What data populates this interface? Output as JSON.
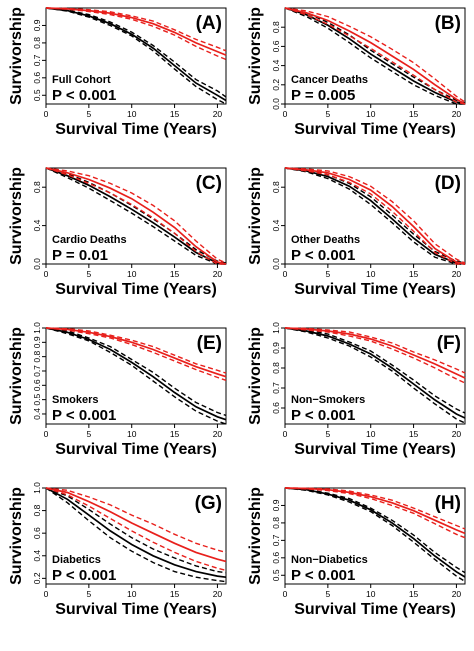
{
  "figure": {
    "y_axis_label": "Survivorship",
    "x_axis_label": "Survival Time (Years)"
  },
  "colors": {
    "group_a": "#000000",
    "group_b": "#e8201c"
  },
  "chart_data": [
    {
      "type": "line",
      "panel_label": "(A)",
      "subgroup": "Full Cohort",
      "p_value": "P < 0.001",
      "xlabel": "Survival Time (Years)",
      "ylabel": "Survivorship",
      "xlim": [
        0,
        21
      ],
      "ylim": [
        0.45,
        1.0
      ],
      "xticks": [
        "0",
        "5",
        "10",
        "15",
        "20"
      ],
      "yticks": [
        "0.5",
        "0.6",
        "0.7",
        "0.8",
        "0.9"
      ],
      "x": [
        0,
        2.5,
        5,
        7.5,
        10,
        12.5,
        15,
        17.5,
        20,
        21
      ],
      "series": [
        {
          "color": "black",
          "values": [
            1.0,
            0.985,
            0.955,
            0.91,
            0.85,
            0.77,
            0.67,
            0.57,
            0.5,
            0.47
          ],
          "lower": [
            1.0,
            0.982,
            0.948,
            0.9,
            0.84,
            0.755,
            0.65,
            0.55,
            0.475,
            0.45
          ],
          "upper": [
            1.0,
            0.988,
            0.962,
            0.92,
            0.862,
            0.785,
            0.69,
            0.59,
            0.525,
            0.49
          ]
        },
        {
          "color": "red",
          "values": [
            1.0,
            0.995,
            0.985,
            0.97,
            0.945,
            0.91,
            0.86,
            0.8,
            0.75,
            0.73
          ],
          "lower": [
            1.0,
            0.993,
            0.98,
            0.962,
            0.935,
            0.895,
            0.845,
            0.78,
            0.725,
            0.705
          ],
          "upper": [
            1.0,
            0.997,
            0.99,
            0.978,
            0.955,
            0.925,
            0.875,
            0.82,
            0.775,
            0.755
          ]
        }
      ]
    },
    {
      "type": "line",
      "panel_label": "(B)",
      "subgroup": "Cancer Deaths",
      "p_value": "P = 0.005",
      "xlabel": "Survival Time (Years)",
      "ylabel": "Survivorship",
      "xlim": [
        0,
        21
      ],
      "ylim": [
        0.0,
        1.0
      ],
      "xticks": [
        "0",
        "5",
        "10",
        "15",
        "20"
      ],
      "yticks": [
        "0.0",
        "0.2",
        "0.4",
        "0.6",
        "0.8"
      ],
      "x": [
        0,
        2.5,
        5,
        7.5,
        10,
        12.5,
        15,
        17.5,
        20,
        21
      ],
      "series": [
        {
          "color": "black",
          "values": [
            1.0,
            0.93,
            0.82,
            0.68,
            0.52,
            0.38,
            0.24,
            0.12,
            0.02,
            0.0
          ],
          "lower": [
            1.0,
            0.91,
            0.79,
            0.64,
            0.48,
            0.34,
            0.2,
            0.09,
            0.0,
            0.0
          ],
          "upper": [
            1.0,
            0.95,
            0.85,
            0.72,
            0.56,
            0.42,
            0.28,
            0.15,
            0.04,
            0.01
          ]
        },
        {
          "color": "red",
          "values": [
            1.0,
            0.95,
            0.87,
            0.76,
            0.64,
            0.5,
            0.36,
            0.2,
            0.05,
            0.0
          ],
          "lower": [
            1.0,
            0.93,
            0.83,
            0.71,
            0.58,
            0.44,
            0.3,
            0.15,
            0.02,
            0.0
          ],
          "upper": [
            1.0,
            0.97,
            0.91,
            0.81,
            0.7,
            0.57,
            0.43,
            0.26,
            0.08,
            0.02
          ]
        }
      ]
    },
    {
      "type": "line",
      "panel_label": "(C)",
      "subgroup": "Cardio Deaths",
      "p_value": "P = 0.01",
      "xlabel": "Survival Time (Years)",
      "ylabel": "Survivorship",
      "xlim": [
        0,
        21
      ],
      "ylim": [
        0.0,
        1.0
      ],
      "xticks": [
        "0",
        "5",
        "10",
        "15",
        "20"
      ],
      "yticks": [
        "0.0",
        "0.4",
        "0.8"
      ],
      "x": [
        0,
        2.5,
        5,
        7.5,
        10,
        12.5,
        15,
        17.5,
        20,
        21
      ],
      "series": [
        {
          "color": "black",
          "values": [
            1.0,
            0.92,
            0.82,
            0.7,
            0.57,
            0.43,
            0.28,
            0.12,
            0.01,
            0.0
          ],
          "lower": [
            1.0,
            0.9,
            0.79,
            0.66,
            0.53,
            0.39,
            0.24,
            0.09,
            0.0,
            0.0
          ],
          "upper": [
            1.0,
            0.94,
            0.85,
            0.74,
            0.61,
            0.47,
            0.32,
            0.15,
            0.03,
            0.01
          ]
        },
        {
          "color": "red",
          "values": [
            1.0,
            0.95,
            0.88,
            0.79,
            0.68,
            0.54,
            0.38,
            0.18,
            0.02,
            0.0
          ],
          "lower": [
            1.0,
            0.93,
            0.84,
            0.74,
            0.62,
            0.48,
            0.32,
            0.13,
            0.0,
            0.0
          ],
          "upper": [
            1.0,
            0.97,
            0.92,
            0.84,
            0.74,
            0.61,
            0.45,
            0.24,
            0.05,
            0.01
          ]
        }
      ]
    },
    {
      "type": "line",
      "panel_label": "(D)",
      "subgroup": "Other Deaths",
      "p_value": "P < 0.001",
      "xlabel": "Survival Time (Years)",
      "ylabel": "Survivorship",
      "xlim": [
        0,
        21
      ],
      "ylim": [
        0.0,
        1.0
      ],
      "xticks": [
        "0",
        "5",
        "10",
        "15",
        "20"
      ],
      "yticks": [
        "0.0",
        "0.4",
        "0.8"
      ],
      "x": [
        0,
        2.5,
        5,
        7.5,
        10,
        12.5,
        15,
        17.5,
        20,
        21
      ],
      "series": [
        {
          "color": "black",
          "values": [
            1.0,
            0.97,
            0.91,
            0.81,
            0.66,
            0.47,
            0.27,
            0.1,
            0.01,
            0.0
          ],
          "lower": [
            1.0,
            0.96,
            0.89,
            0.78,
            0.62,
            0.43,
            0.23,
            0.07,
            0.0,
            0.0
          ],
          "upper": [
            1.0,
            0.98,
            0.93,
            0.84,
            0.7,
            0.51,
            0.31,
            0.13,
            0.03,
            0.01
          ]
        },
        {
          "color": "red",
          "values": [
            1.0,
            0.98,
            0.95,
            0.88,
            0.77,
            0.6,
            0.39,
            0.16,
            0.02,
            0.0
          ],
          "lower": [
            1.0,
            0.97,
            0.93,
            0.85,
            0.73,
            0.55,
            0.34,
            0.12,
            0.0,
            0.0
          ],
          "upper": [
            1.0,
            0.99,
            0.97,
            0.91,
            0.81,
            0.65,
            0.45,
            0.21,
            0.05,
            0.01
          ]
        }
      ]
    },
    {
      "type": "line",
      "panel_label": "(E)",
      "subgroup": "Smokers",
      "p_value": "P < 0.001",
      "xlabel": "Survival Time (Years)",
      "ylabel": "Survivorship",
      "xlim": [
        0,
        21
      ],
      "ylim": [
        0.33,
        1.0
      ],
      "xticks": [
        "0",
        "5",
        "10",
        "15",
        "20"
      ],
      "yticks": [
        "0.4",
        "0.5",
        "0.6",
        "0.7",
        "0.8",
        "0.9",
        "1.0"
      ],
      "x": [
        0,
        2.5,
        5,
        7.5,
        10,
        12.5,
        15,
        17.5,
        20,
        21
      ],
      "series": [
        {
          "color": "black",
          "values": [
            1.0,
            0.97,
            0.92,
            0.85,
            0.76,
            0.66,
            0.55,
            0.45,
            0.38,
            0.36
          ],
          "lower": [
            1.0,
            0.96,
            0.91,
            0.83,
            0.74,
            0.63,
            0.52,
            0.42,
            0.35,
            0.33
          ],
          "upper": [
            1.0,
            0.98,
            0.93,
            0.87,
            0.78,
            0.69,
            0.58,
            0.48,
            0.41,
            0.39
          ]
        },
        {
          "color": "red",
          "values": [
            1.0,
            0.99,
            0.97,
            0.94,
            0.9,
            0.85,
            0.79,
            0.73,
            0.68,
            0.66
          ],
          "lower": [
            1.0,
            0.985,
            0.96,
            0.93,
            0.885,
            0.83,
            0.77,
            0.71,
            0.655,
            0.635
          ],
          "upper": [
            1.0,
            0.995,
            0.98,
            0.95,
            0.915,
            0.87,
            0.81,
            0.75,
            0.705,
            0.685
          ]
        }
      ]
    },
    {
      "type": "line",
      "panel_label": "(F)",
      "subgroup": "Non−Smokers",
      "p_value": "P < 0.001",
      "xlabel": "Survival Time (Years)",
      "ylabel": "Survivorship",
      "xlim": [
        0,
        21
      ],
      "ylim": [
        0.52,
        1.0
      ],
      "xticks": [
        "0",
        "5",
        "10",
        "15",
        "20"
      ],
      "yticks": [
        "0.6",
        "0.7",
        "0.8",
        "0.9",
        "1.0"
      ],
      "x": [
        0,
        2.5,
        5,
        7.5,
        10,
        12.5,
        15,
        17.5,
        20,
        21
      ],
      "series": [
        {
          "color": "black",
          "values": [
            1.0,
            0.985,
            0.96,
            0.92,
            0.87,
            0.8,
            0.72,
            0.64,
            0.57,
            0.55
          ],
          "lower": [
            1.0,
            0.98,
            0.95,
            0.91,
            0.855,
            0.785,
            0.7,
            0.62,
            0.545,
            0.525
          ],
          "upper": [
            1.0,
            0.99,
            0.97,
            0.93,
            0.885,
            0.815,
            0.74,
            0.66,
            0.595,
            0.575
          ]
        },
        {
          "color": "red",
          "values": [
            1.0,
            0.995,
            0.985,
            0.97,
            0.945,
            0.91,
            0.865,
            0.82,
            0.77,
            0.75
          ],
          "lower": [
            1.0,
            0.99,
            0.98,
            0.96,
            0.935,
            0.895,
            0.85,
            0.8,
            0.745,
            0.725
          ],
          "upper": [
            1.0,
            0.998,
            0.99,
            0.98,
            0.955,
            0.925,
            0.88,
            0.84,
            0.795,
            0.775
          ]
        }
      ]
    },
    {
      "type": "line",
      "panel_label": "(G)",
      "subgroup": "Diabetics",
      "p_value": "P < 0.001",
      "xlabel": "Survival Time (Years)",
      "ylabel": "Survivorship",
      "xlim": [
        0,
        21
      ],
      "ylim": [
        0.15,
        1.0
      ],
      "xticks": [
        "0",
        "5",
        "10",
        "15",
        "20"
      ],
      "yticks": [
        "0.2",
        "0.4",
        "0.6",
        "0.8",
        "1.0"
      ],
      "x": [
        0,
        2.5,
        5,
        7.5,
        10,
        12.5,
        15,
        17.5,
        20,
        21
      ],
      "series": [
        {
          "color": "black",
          "values": [
            1.0,
            0.9,
            0.76,
            0.62,
            0.5,
            0.4,
            0.32,
            0.26,
            0.22,
            0.21
          ],
          "lower": [
            1.0,
            0.87,
            0.71,
            0.56,
            0.44,
            0.34,
            0.26,
            0.21,
            0.18,
            0.17
          ],
          "upper": [
            1.0,
            0.93,
            0.81,
            0.68,
            0.56,
            0.46,
            0.38,
            0.31,
            0.26,
            0.25
          ]
        },
        {
          "color": "red",
          "values": [
            1.0,
            0.96,
            0.88,
            0.79,
            0.69,
            0.6,
            0.51,
            0.43,
            0.37,
            0.35
          ],
          "lower": [
            1.0,
            0.94,
            0.84,
            0.73,
            0.62,
            0.52,
            0.43,
            0.35,
            0.29,
            0.27
          ],
          "upper": [
            1.0,
            0.98,
            0.92,
            0.85,
            0.76,
            0.68,
            0.59,
            0.51,
            0.45,
            0.43
          ]
        }
      ]
    },
    {
      "type": "line",
      "panel_label": "(H)",
      "subgroup": "Non−Diabetics",
      "p_value": "P < 0.001",
      "xlabel": "Survival Time (Years)",
      "ylabel": "Survivorship",
      "xlim": [
        0,
        21
      ],
      "ylim": [
        0.45,
        1.0
      ],
      "xticks": [
        "0",
        "5",
        "10",
        "15",
        "20"
      ],
      "yticks": [
        "0.5",
        "0.6",
        "0.7",
        "0.8",
        "0.9"
      ],
      "x": [
        0,
        2.5,
        5,
        7.5,
        10,
        12.5,
        15,
        17.5,
        20,
        21
      ],
      "series": [
        {
          "color": "black",
          "values": [
            1.0,
            0.99,
            0.965,
            0.93,
            0.875,
            0.8,
            0.71,
            0.61,
            0.52,
            0.49
          ],
          "lower": [
            1.0,
            0.987,
            0.96,
            0.92,
            0.865,
            0.785,
            0.69,
            0.59,
            0.495,
            0.465
          ],
          "upper": [
            1.0,
            0.992,
            0.97,
            0.94,
            0.885,
            0.815,
            0.73,
            0.63,
            0.545,
            0.515
          ]
        },
        {
          "color": "red",
          "values": [
            1.0,
            0.997,
            0.99,
            0.975,
            0.95,
            0.915,
            0.87,
            0.815,
            0.76,
            0.74
          ],
          "lower": [
            1.0,
            0.995,
            0.985,
            0.968,
            0.94,
            0.9,
            0.855,
            0.795,
            0.735,
            0.715
          ],
          "upper": [
            1.0,
            0.999,
            0.995,
            0.982,
            0.96,
            0.93,
            0.885,
            0.835,
            0.785,
            0.765
          ]
        }
      ]
    }
  ]
}
